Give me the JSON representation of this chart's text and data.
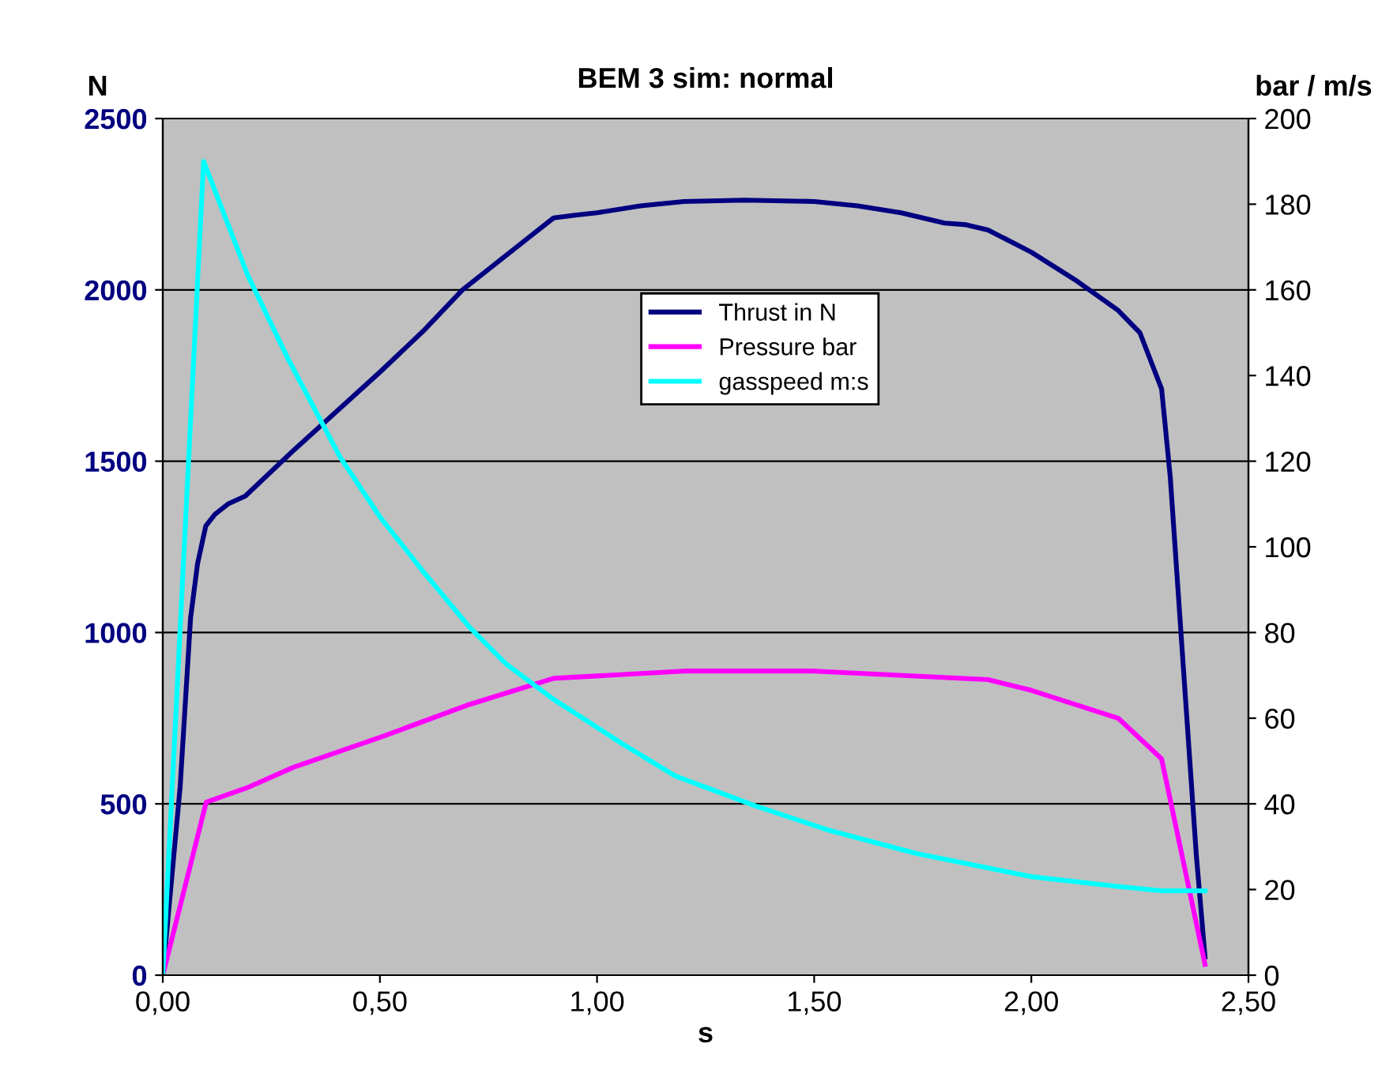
{
  "chart_data": {
    "type": "line",
    "title": "BEM 3 sim: normal",
    "xlabel": "s",
    "ylabel": "N",
    "y2label": "bar / m/s",
    "xlim": [
      0,
      2.5
    ],
    "xticks": [
      {
        "value": 0,
        "label": "0,00"
      },
      {
        "value": 0.5,
        "label": "0,50"
      },
      {
        "value": 1,
        "label": "1,00"
      },
      {
        "value": 1.5,
        "label": "1,50"
      },
      {
        "value": 2,
        "label": "2,00"
      },
      {
        "value": 2.5,
        "label": "2,50"
      }
    ],
    "ylim": [
      0,
      2500
    ],
    "yticks": [
      0,
      500,
      1000,
      1500,
      2000,
      2500
    ],
    "y2lim": [
      0,
      200
    ],
    "y2ticks": [
      0,
      20,
      40,
      60,
      80,
      100,
      120,
      140,
      160,
      180,
      200
    ],
    "grid": "y",
    "legend": "top",
    "line_style": "solid",
    "marker": "none",
    "series": [
      {
        "name": "Thrust in N",
        "color": "#000080",
        "x": [
          0,
          0.04,
          0.064,
          0.08,
          0.099,
          0.12,
          0.15,
          0.19,
          0.3,
          0.5,
          0.6,
          0.69,
          0.85,
          0.9,
          0.95,
          1.0,
          1.1,
          1.2,
          1.34,
          1.5,
          1.6,
          1.7,
          1.8,
          1.85,
          1.9,
          2.0,
          2.1,
          2.2,
          2.25,
          2.3,
          2.32,
          2.35,
          2.38,
          2.4
        ],
        "values": [
          0,
          550,
          1042,
          1200,
          1311,
          1345,
          1375,
          1398,
          1530,
          1760,
          1880,
          2000,
          2160,
          2210,
          2218,
          2225,
          2245,
          2258,
          2262,
          2258,
          2245,
          2225,
          2195,
          2190,
          2175,
          2110,
          2030,
          1940,
          1875,
          1711,
          1453,
          900,
          350,
          53
        ]
      },
      {
        "name": "Pressure bar",
        "color": "#ff00ff",
        "axis": "y2",
        "x": [
          0,
          0.1,
          0.2,
          0.3,
          0.5,
          0.7,
          0.9,
          1.2,
          1.5,
          1.9,
          2.0,
          2.2,
          2.3,
          2.4
        ],
        "values": [
          0,
          40.4,
          44,
          48.5,
          55.5,
          63,
          69.3,
          71,
          71,
          69,
          66.5,
          60,
          50.5,
          2.5
        ]
      },
      {
        "name": "gasspeed m:s",
        "color": "#00ffff",
        "axis": "y2",
        "x": [
          0,
          0.094,
          0.196,
          0.289,
          0.408,
          0.5,
          0.6,
          0.705,
          0.79,
          0.897,
          1.06,
          1.18,
          1.365,
          1.535,
          1.735,
          2.0,
          2.2,
          2.3,
          2.4
        ],
        "values": [
          0,
          190,
          163.3,
          143.8,
          121,
          107,
          94.2,
          81.4,
          72.7,
          64.6,
          53.9,
          46.5,
          39.5,
          33.8,
          28.4,
          23,
          20.7,
          19.7,
          19.7
        ]
      }
    ]
  }
}
